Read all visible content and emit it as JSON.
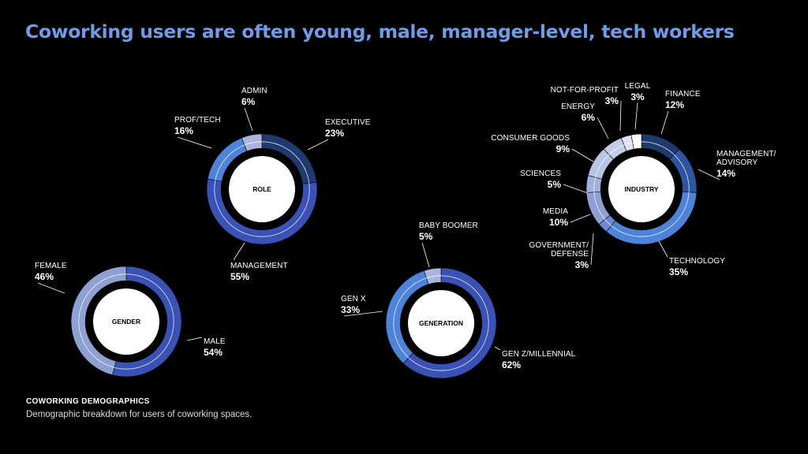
{
  "title": "Coworking users are often young, male, manager-level, tech workers",
  "footer": {
    "title": "COWORKING DEMOGRAPHICS",
    "subtitle": "Demographic breakdown for users of coworking spaces."
  },
  "colors": {
    "background": "#000000",
    "title": "#6f9be8",
    "palette": [
      "#1f3a6e",
      "#3a52b6",
      "#4d83d9",
      "#6f89d4",
      "#8fa0d2",
      "#a9b5dd",
      "#c3cde9",
      "#dde3f4",
      "#ffffff"
    ]
  },
  "chart_data": [
    {
      "type": "pie",
      "title": "GENDER",
      "start": "top",
      "segments": [
        {
          "label": "MALE",
          "value": 54,
          "display": "54%",
          "color": "#3a52b6"
        },
        {
          "label": "FEMALE",
          "value": 46,
          "display": "46%",
          "color": "#8fa0d2"
        }
      ]
    },
    {
      "type": "pie",
      "title": "ROLE",
      "start": "top",
      "segments": [
        {
          "label": "EXECUTIVE",
          "value": 23,
          "display": "23%",
          "color": "#1f3a6e"
        },
        {
          "label": "MANAGEMENT",
          "value": 55,
          "display": "55%",
          "color": "#3a52b6"
        },
        {
          "label": "PROF/TECH",
          "value": 16,
          "display": "16%",
          "color": "#4d83d9"
        },
        {
          "label": "ADMIN",
          "value": 6,
          "display": "6%",
          "color": "#a9b5dd"
        }
      ]
    },
    {
      "type": "pie",
      "title": "GENERATION",
      "start": "top",
      "segments": [
        {
          "label": "GEN Z/MILLENNIAL",
          "value": 62,
          "display": "62%",
          "color": "#3a52b6"
        },
        {
          "label": "GEN X",
          "value": 33,
          "display": "33%",
          "color": "#4d83d9"
        },
        {
          "label": "BABY BOOMER",
          "value": 5,
          "display": "5%",
          "color": "#a9b5dd"
        }
      ]
    },
    {
      "type": "pie",
      "title": "INDUSTRY",
      "start": "top",
      "segments": [
        {
          "label": "FINANCE",
          "value": 12,
          "display": "12%",
          "color": "#1f3a6e"
        },
        {
          "label": "MANAGEMENT/ ADVISORY",
          "value": 14,
          "display": "14%",
          "color": "#2e55a0"
        },
        {
          "label": "TECHNOLOGY",
          "value": 35,
          "display": "35%",
          "color": "#4d83d9"
        },
        {
          "label": "GOVERNMENT/ DEFENSE",
          "value": 3,
          "display": "3%",
          "color": "#6f89d4"
        },
        {
          "label": "MEDIA",
          "value": 10,
          "display": "10%",
          "color": "#8fa0d2"
        },
        {
          "label": "SCIENCES",
          "value": 5,
          "display": "5%",
          "color": "#9fb2dd"
        },
        {
          "label": "CONSUMER GOODS",
          "value": 9,
          "display": "9%",
          "color": "#b7c4e6"
        },
        {
          "label": "ENERGY",
          "value": 6,
          "display": "6%",
          "color": "#c3cde9"
        },
        {
          "label": "NOT-FOR-PROFIT",
          "value": 3,
          "display": "3%",
          "color": "#dde3f4"
        },
        {
          "label": "LEGAL",
          "value": 3,
          "display": "3%",
          "color": "#ffffff"
        }
      ]
    }
  ]
}
